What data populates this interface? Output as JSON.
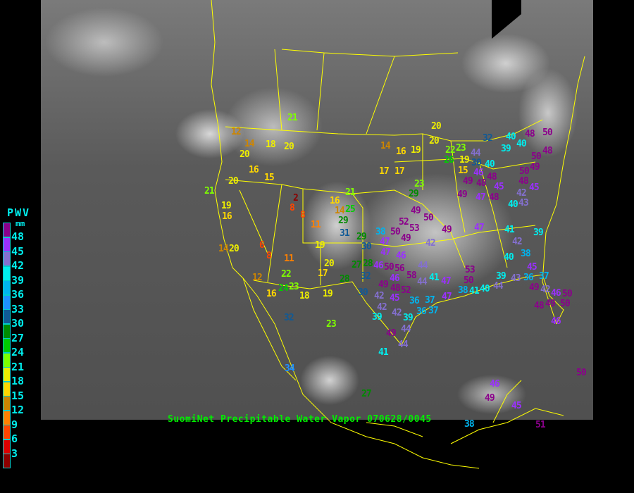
{
  "title": "SuomiNet Precipitable Water Vapor 070628/0045",
  "legend": {
    "title": "PWV",
    "unit": "mm",
    "labels": [
      "48",
      "45",
      "42",
      "39",
      "36",
      "33",
      "30",
      "27",
      "24",
      "21",
      "18",
      "15",
      "12",
      "9",
      "6",
      "3"
    ],
    "colors": [
      "#8b008b",
      "#9b30ff",
      "#8470d0",
      "#00eeee",
      "#00b4ee",
      "#1e90ff",
      "#105a96",
      "#008b00",
      "#00cd00",
      "#7fff00",
      "#eeee00",
      "#ffd700",
      "#cd8500",
      "#ff8000",
      "#ff4500",
      "#dd0000",
      "#8b0000"
    ]
  },
  "map": {
    "border_color": "#ffff00"
  },
  "stations": [
    21,
    12,
    14,
    18,
    20,
    20,
    16,
    15,
    20,
    21,
    19,
    16,
    2,
    8,
    8,
    16,
    14,
    21,
    25,
    29,
    11,
    31,
    29,
    6,
    14,
    20,
    19,
    30,
    8,
    11,
    20,
    17,
    27,
    28,
    22,
    12,
    28,
    32,
    46,
    24,
    23,
    16,
    18,
    19,
    30,
    42,
    49,
    39,
    32,
    23,
    34,
    27,
    41,
    38,
    46,
    49,
    45,
    51,
    50,
    46,
    20,
    20,
    14,
    16,
    19,
    17,
    17,
    22,
    23,
    19,
    26,
    15,
    30,
    32,
    40,
    39,
    40,
    48,
    50,
    48,
    50,
    49,
    50,
    48,
    45,
    42,
    43,
    40,
    29,
    23,
    49,
    44,
    46,
    40,
    49,
    48,
    48,
    45,
    47,
    48,
    49,
    50,
    52,
    50,
    53,
    49,
    38,
    47,
    47,
    42,
    49,
    47,
    41,
    39,
    42,
    40,
    38,
    45,
    46,
    50,
    46,
    56,
    58,
    44,
    44,
    48,
    45,
    52,
    42,
    36,
    37,
    36,
    37,
    41,
    47,
    47,
    53,
    50,
    38,
    41,
    40,
    42,
    39,
    44,
    49,
    44,
    39,
    43,
    36,
    37,
    44,
    49,
    42,
    46,
    50,
    49,
    48,
    50
  ]
}
